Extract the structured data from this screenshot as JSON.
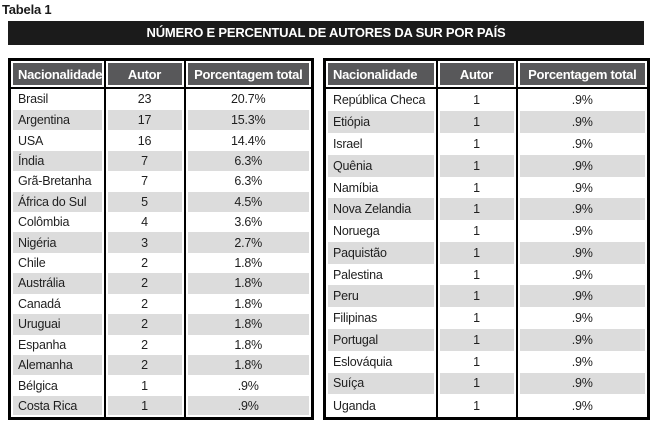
{
  "page_label": "Tabela 1",
  "title_bar": {
    "title": "NÚMERO E PERCENTUAL DE AUTORES DA SUR POR PAÍS"
  },
  "colors": {
    "title_bar_bg": "#1b1b1b",
    "title_bar_text": "#ffffff",
    "header_bg": "#58585a",
    "header_text": "#ffffff",
    "row_alt_bg": "#dcdcdc",
    "border": "#000000",
    "body_text": "#1f1f1f"
  },
  "tables": [
    {
      "columns": [
        "Nacionalidade",
        "Autor",
        "Porcentagem total"
      ],
      "rows": [
        [
          "Brasil",
          "23",
          "20.7%"
        ],
        [
          "Argentina",
          "17",
          "15.3%"
        ],
        [
          "USA",
          "16",
          "14.4%"
        ],
        [
          "Índia",
          "7",
          "6.3%"
        ],
        [
          "Grã-Bretanha",
          "7",
          "6.3%"
        ],
        [
          "África do Sul",
          "5",
          "4.5%"
        ],
        [
          "Colômbia",
          "4",
          "3.6%"
        ],
        [
          "Nigéria",
          "3",
          "2.7%"
        ],
        [
          "Chile",
          "2",
          "1.8%"
        ],
        [
          "Austrália",
          "2",
          "1.8%"
        ],
        [
          "Canadá",
          "2",
          "1.8%"
        ],
        [
          "Uruguai",
          "2",
          "1.8%"
        ],
        [
          "Espanha",
          "2",
          "1.8%"
        ],
        [
          "Alemanha",
          "2",
          "1.8%"
        ],
        [
          "Bélgica",
          "1",
          ".9%"
        ],
        [
          "Costa Rica",
          "1",
          ".9%"
        ]
      ]
    },
    {
      "columns": [
        "Nacionalidade",
        "Autor",
        "Porcentagem total"
      ],
      "rows": [
        [
          "República Checa",
          "1",
          ".9%"
        ],
        [
          "Etiópia",
          "1",
          ".9%"
        ],
        [
          "Israel",
          "1",
          ".9%"
        ],
        [
          "Quênia",
          "1",
          ".9%"
        ],
        [
          "Namíbia",
          "1",
          ".9%"
        ],
        [
          "Nova Zelandia",
          "1",
          ".9%"
        ],
        [
          "Noruega",
          "1",
          ".9%"
        ],
        [
          "Paquistão",
          "1",
          ".9%"
        ],
        [
          "Palestina",
          "1",
          ".9%"
        ],
        [
          "Peru",
          "1",
          ".9%"
        ],
        [
          "Filipinas",
          "1",
          ".9%"
        ],
        [
          "Portugal",
          "1",
          ".9%"
        ],
        [
          "Eslováquia",
          "1",
          ".9%"
        ],
        [
          "Suíça",
          "1",
          ".9%"
        ],
        [
          "Uganda",
          "1",
          ".9%"
        ]
      ]
    }
  ]
}
